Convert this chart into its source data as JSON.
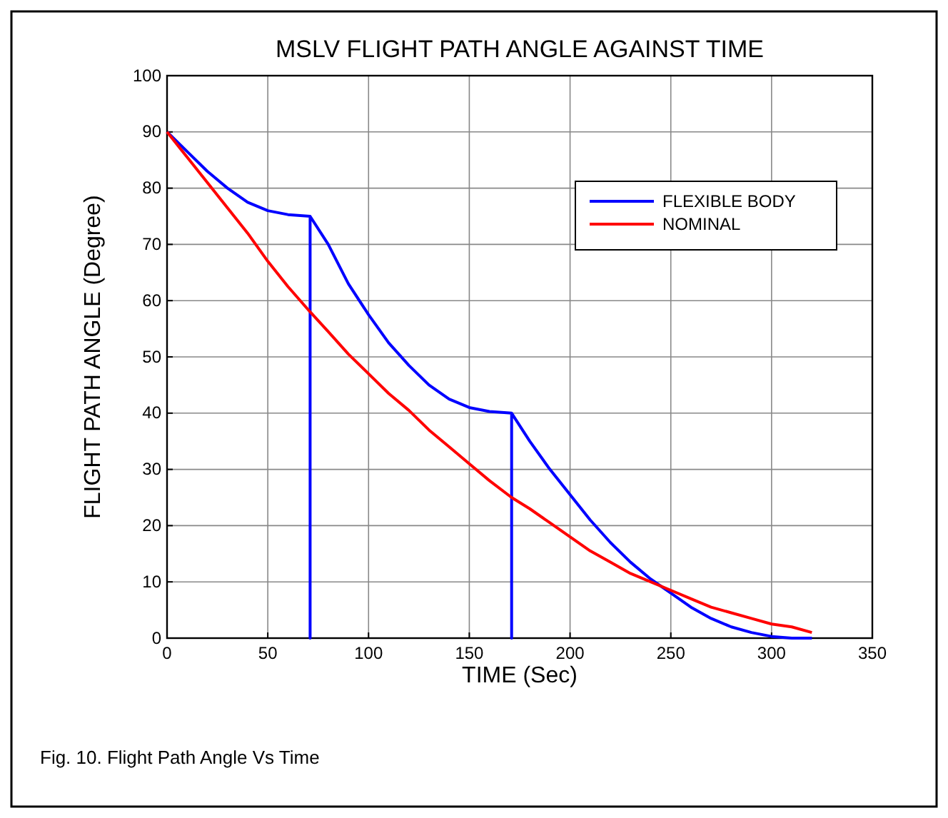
{
  "chart_data": {
    "type": "line",
    "title": "MSLV FLIGHT PATH ANGLE AGAINST TIME",
    "xlabel": "TIME (Sec)",
    "ylabel": "FLIGHT PATH ANGLE (Degree)",
    "annotations": [
      "Fig. 10. Flight Path Angle Vs Time"
    ],
    "series": [
      {
        "name": "FLEXIBLE BODY",
        "color": "#0000ff",
        "x": [
          0,
          10,
          20,
          30,
          40,
          50,
          60,
          71,
          71,
          71,
          80,
          90,
          100,
          110,
          120,
          130,
          140,
          150,
          160,
          171,
          171,
          171,
          180,
          190,
          200,
          210,
          220,
          230,
          240,
          250,
          260,
          270,
          280,
          290,
          300,
          310,
          320
        ],
        "values": [
          90,
          86.5,
          83,
          80,
          77.5,
          76,
          75.3,
          75,
          0,
          75,
          70,
          63,
          57.5,
          52.5,
          48.5,
          45,
          42.5,
          41,
          40.3,
          40,
          0,
          40,
          35,
          30,
          25.5,
          21,
          17,
          13.5,
          10.5,
          8,
          5.5,
          3.5,
          2,
          1,
          0.3,
          0,
          0
        ]
      },
      {
        "name": "NOMINAL",
        "color": "#ff0000",
        "x": [
          0,
          10,
          20,
          30,
          40,
          50,
          60,
          71,
          80,
          90,
          100,
          110,
          120,
          130,
          140,
          150,
          160,
          171,
          180,
          190,
          200,
          210,
          220,
          230,
          240,
          250,
          260,
          270,
          280,
          290,
          300,
          310,
          320
        ],
        "values": [
          90,
          85.5,
          81,
          76.5,
          72,
          67,
          62.5,
          58,
          54.5,
          50.5,
          47,
          43.5,
          40.5,
          37,
          34,
          31,
          28,
          25,
          23,
          20.5,
          18,
          15.5,
          13.5,
          11.5,
          10,
          8.5,
          7,
          5.5,
          4.5,
          3.5,
          2.5,
          2,
          1
        ]
      }
    ],
    "xlim": [
      0,
      350
    ],
    "xticks": [
      0,
      50,
      100,
      150,
      200,
      250,
      300,
      350
    ],
    "ylim": [
      0,
      100
    ],
    "yticks": [
      0,
      10,
      20,
      30,
      40,
      50,
      60,
      70,
      80,
      90,
      100
    ],
    "grid": true,
    "legend": "top right",
    "marker": "none",
    "line_style": "solid"
  }
}
